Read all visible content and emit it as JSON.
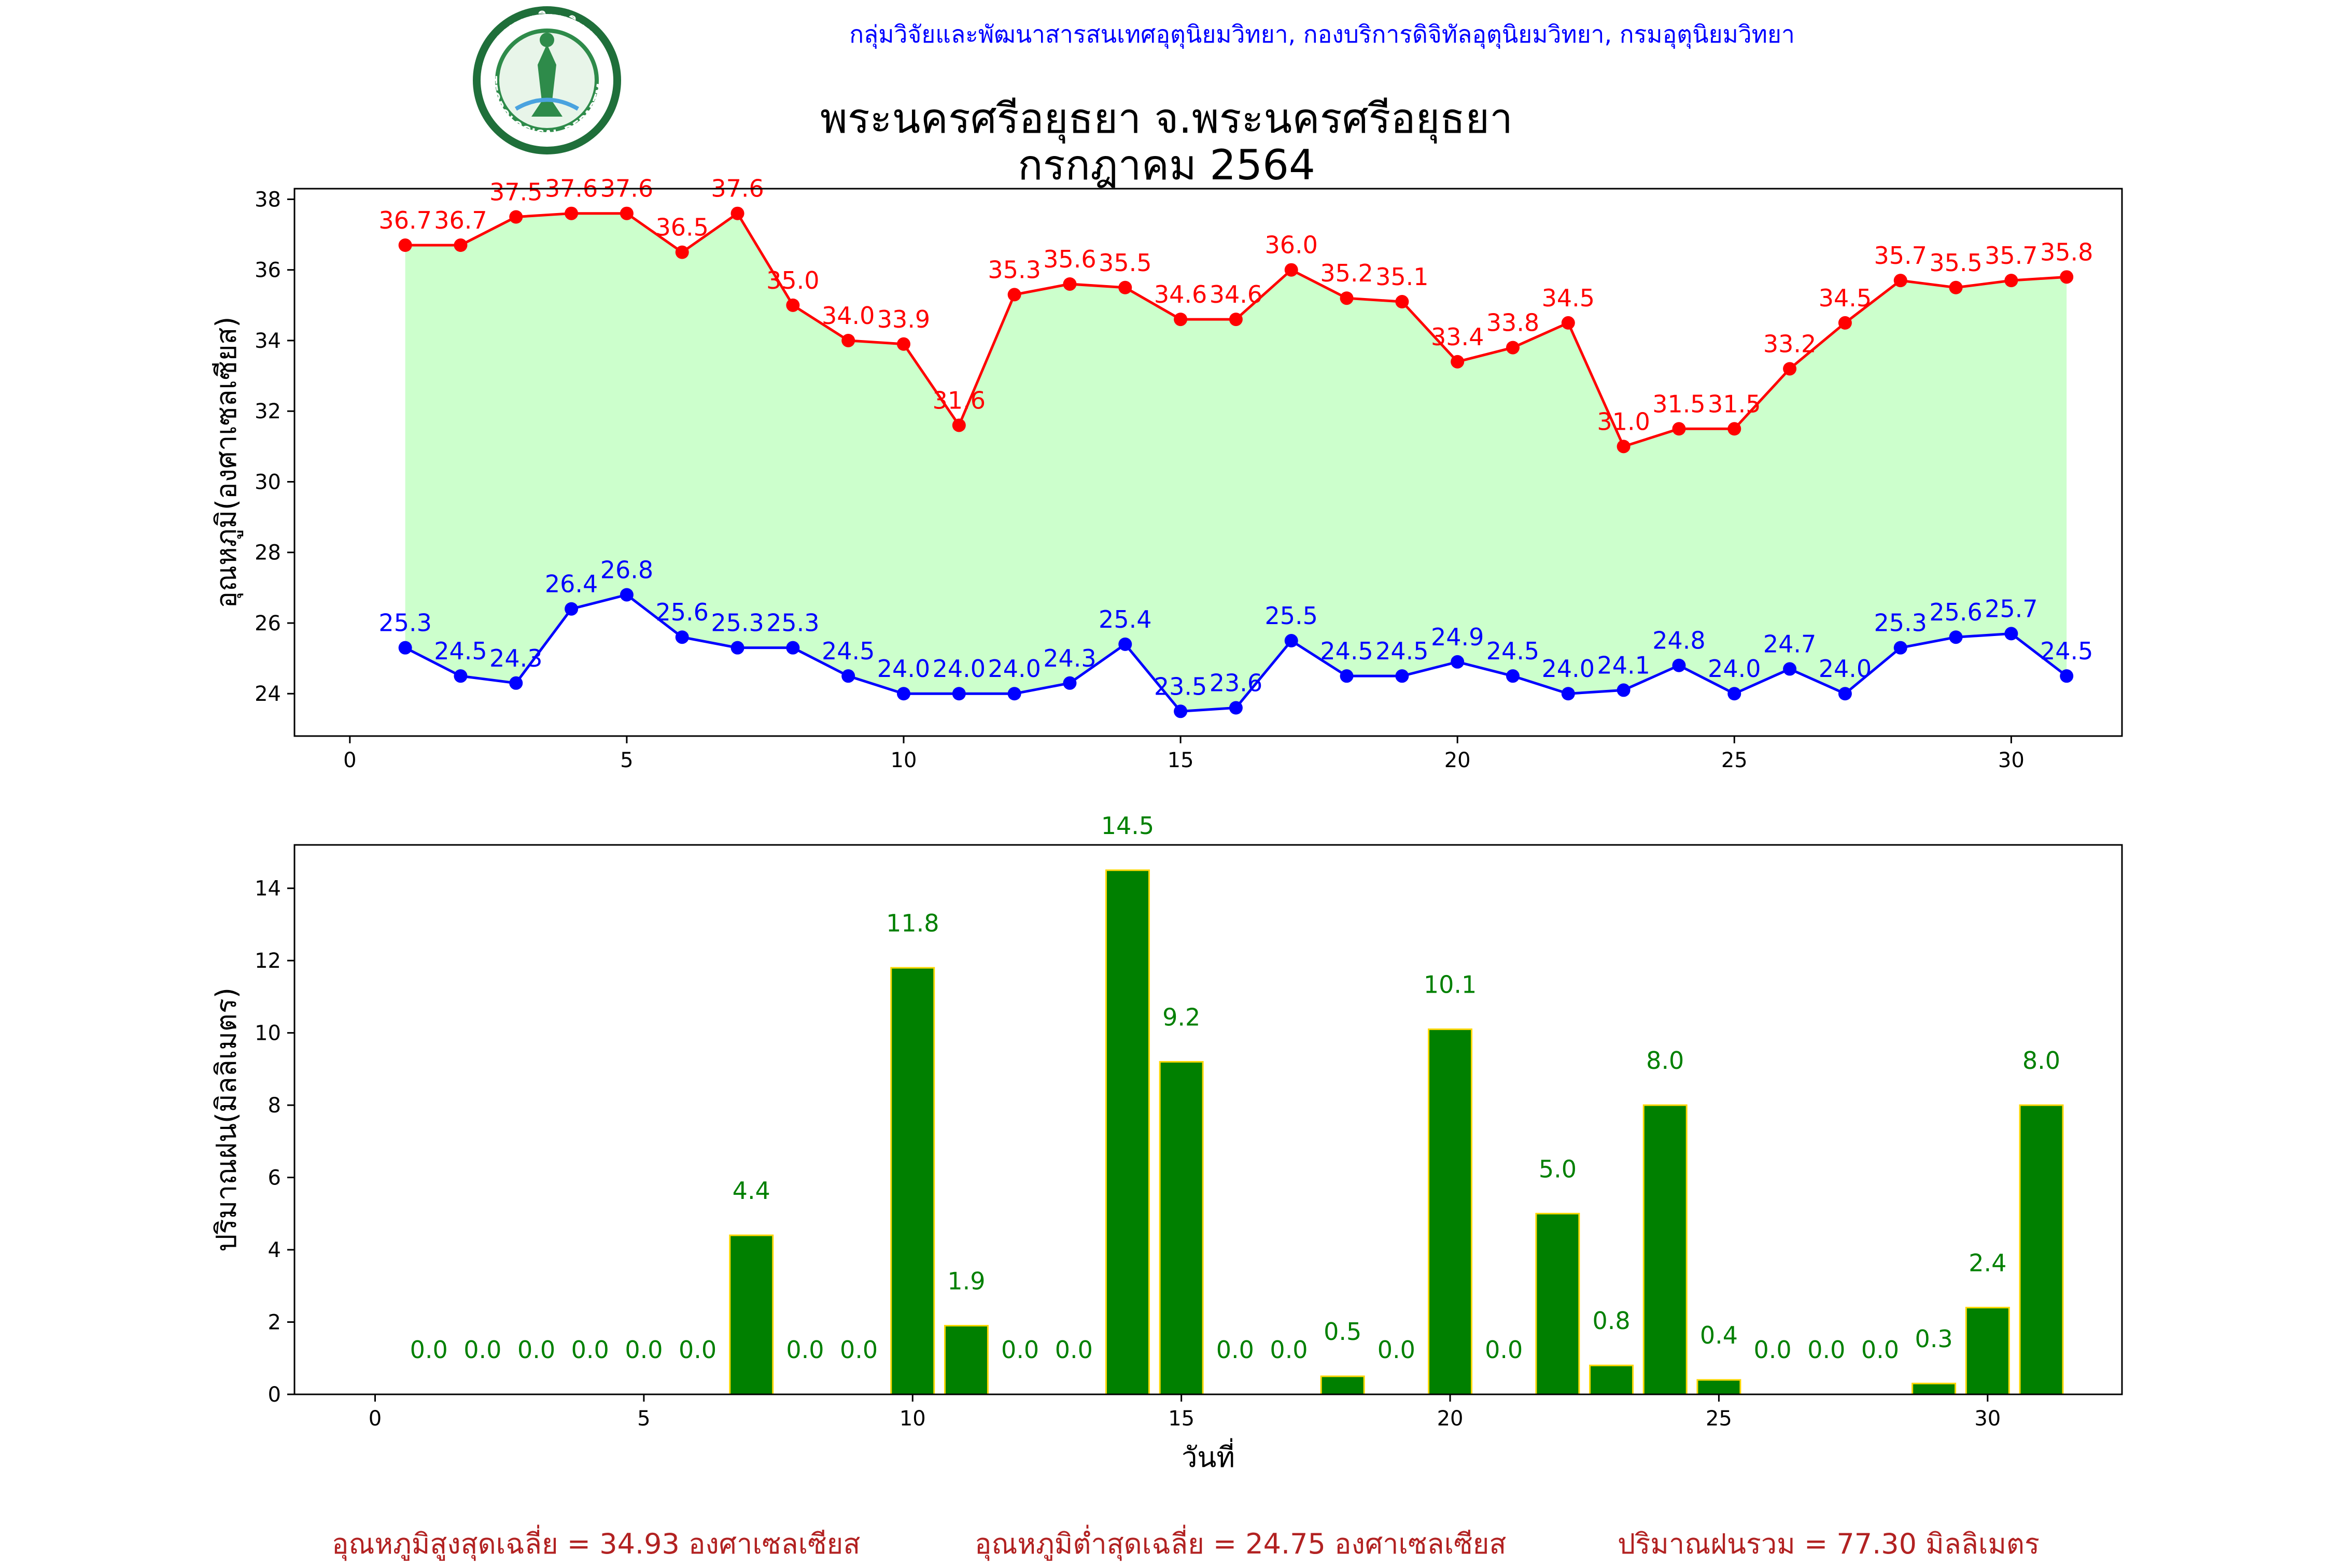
{
  "header": {
    "org": "กลุ่มวิจัยและพัฒนาสารสนเทศอุตุนิยมวิทยา, กองบริการดิจิทัลอุตุนิยมวิทยา, กรมอุตุนิยมวิทยา",
    "logo_label": "METEOROLOGICAL DEPARTMENT",
    "logo_thai": "กรมอุตุนิยมวิทยา",
    "title_line1": "พระนครศรีอยุธยา จ.พระนครศรีอยุธยา",
    "title_line2": "กรกฎาคม 2564"
  },
  "footer": {
    "avg_max": "อุณหภูมิสูงสุดเฉลี่ย = 34.93 องศาเซลเซียส",
    "avg_min": "อุณหภูมิต่ำสุดเฉลี่ย = 24.75 องศาเซลเซียส",
    "rain_total": "ปริมาณฝนรวม = 77.30 มิลลิเมตร"
  },
  "colors": {
    "max_line": "#ff0000",
    "min_line": "#0000ff",
    "fill": "#ccffcc",
    "bar": "#008000",
    "bar_edge": "#ffd700",
    "footer_text": "#b22222"
  },
  "chart_data": [
    {
      "type": "line",
      "ylabel": "อุณหภูมิ(องศาเซลเซียส)",
      "xlim": [
        -1,
        32
      ],
      "ylim": [
        22.8,
        38.3
      ],
      "xticks": [
        0,
        5,
        10,
        15,
        20,
        25,
        30
      ],
      "yticks": [
        24,
        26,
        28,
        30,
        32,
        34,
        36,
        38
      ],
      "x": [
        1,
        2,
        3,
        4,
        5,
        6,
        7,
        8,
        9,
        10,
        11,
        12,
        13,
        14,
        15,
        16,
        17,
        18,
        19,
        20,
        21,
        22,
        23,
        24,
        25,
        26,
        27,
        28,
        29,
        30,
        31
      ],
      "series": [
        {
          "key": "max",
          "values": [
            36.7,
            36.7,
            37.5,
            37.6,
            37.6,
            36.5,
            37.6,
            35.0,
            34.0,
            33.9,
            31.6,
            35.3,
            35.6,
            35.5,
            34.6,
            34.6,
            36.0,
            35.2,
            35.1,
            33.4,
            33.8,
            34.5,
            31.0,
            31.5,
            31.5,
            33.2,
            34.5,
            35.7,
            35.5,
            35.7,
            35.8
          ]
        },
        {
          "key": "min",
          "values": [
            25.3,
            24.5,
            24.3,
            26.4,
            26.8,
            25.6,
            25.3,
            25.3,
            24.5,
            24.0,
            24.0,
            24.0,
            24.3,
            25.4,
            23.5,
            23.6,
            25.5,
            24.5,
            24.5,
            24.9,
            24.5,
            24.0,
            24.1,
            24.8,
            24.0,
            24.7,
            24.0,
            25.3,
            25.6,
            25.7,
            24.5
          ]
        }
      ]
    },
    {
      "type": "bar",
      "xlabel": "วันที่",
      "ylabel": "ปริมาณฝน(มิลลิเมตร)",
      "xlim": [
        -1.5,
        32.5
      ],
      "ylim": [
        0,
        15.2
      ],
      "xticks": [
        0,
        5,
        10,
        15,
        20,
        25,
        30
      ],
      "yticks": [
        0,
        2,
        4,
        6,
        8,
        10,
        12,
        14
      ],
      "x": [
        1,
        2,
        3,
        4,
        5,
        6,
        7,
        8,
        9,
        10,
        11,
        12,
        13,
        14,
        15,
        16,
        17,
        18,
        19,
        20,
        21,
        22,
        23,
        24,
        25,
        26,
        27,
        28,
        29,
        30,
        31
      ],
      "values": [
        0.0,
        0.0,
        0.0,
        0.0,
        0.0,
        0.0,
        4.4,
        0.0,
        0.0,
        11.8,
        1.9,
        0.0,
        0.0,
        14.5,
        9.2,
        0.0,
        0.0,
        0.5,
        0.0,
        10.1,
        0.0,
        5.0,
        0.8,
        8.0,
        0.4,
        0.0,
        0.0,
        0.0,
        0.3,
        2.4,
        8.0
      ]
    }
  ]
}
